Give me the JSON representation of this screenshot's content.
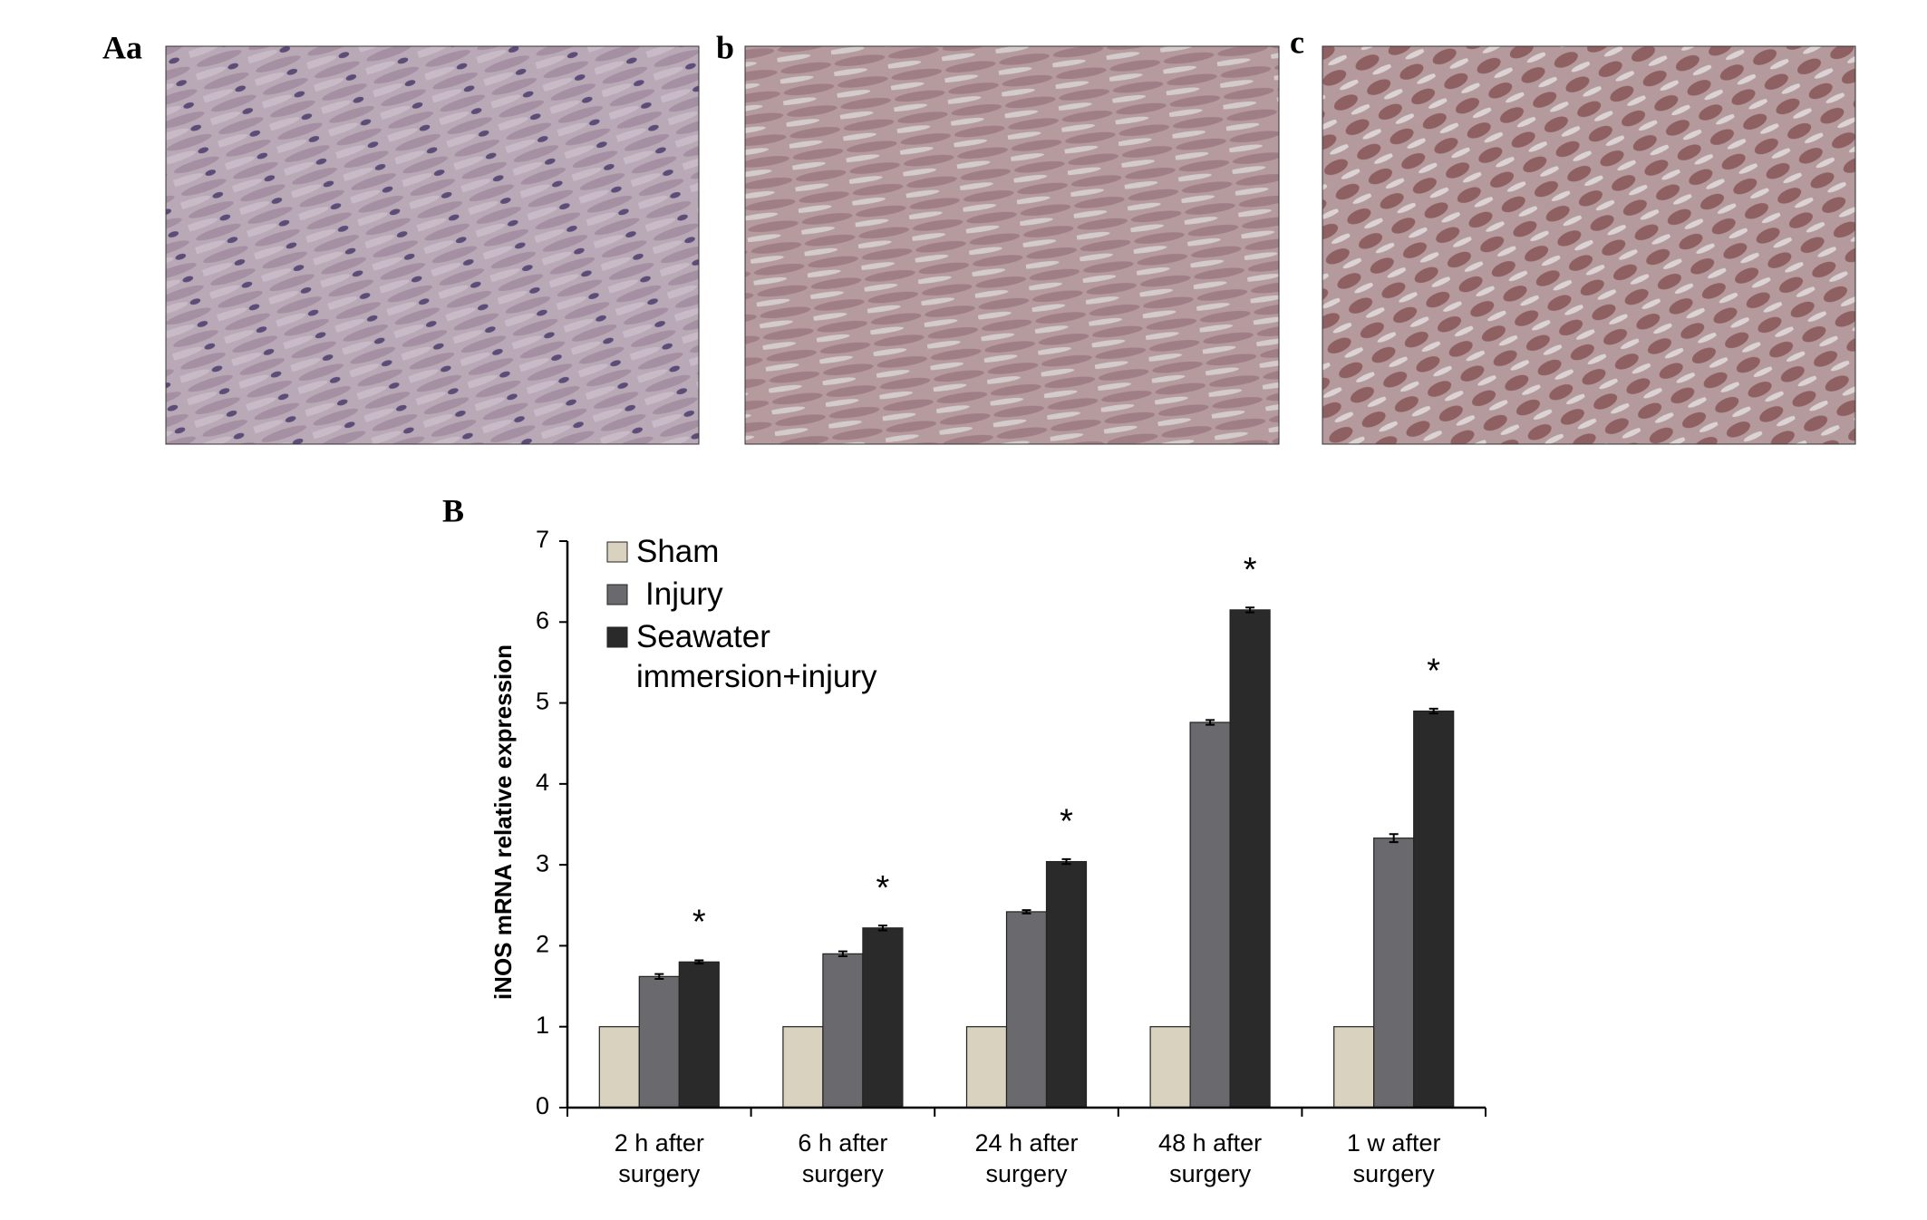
{
  "figure_labels": [
    "Aa",
    "b",
    "c",
    "B"
  ],
  "chart_data": {
    "type": "bar",
    "y_label": "iNOS mRNA relative expression",
    "categories": [
      "2 h after surgery",
      "6 h after surgery",
      "24 h after surgery",
      "48 h after surgery",
      "1 w after surgery"
    ],
    "series": [
      {
        "name": "Sham",
        "color": "#d8d2bf",
        "values": [
          1,
          1,
          1,
          1,
          1
        ]
      },
      {
        "name": "Injury",
        "color": "#6a6a6e",
        "values": [
          1.62,
          1.9,
          2.42,
          4.76,
          3.33
        ],
        "errors": [
          0.03,
          0.03,
          0.02,
          0.03,
          0.05
        ]
      },
      {
        "name": "Seawater immersion+injury",
        "color": "#2a2a2a",
        "values": [
          1.8,
          2.22,
          3.04,
          6.15,
          4.9
        ],
        "errors": [
          0.02,
          0.03,
          0.03,
          0.03,
          0.03
        ],
        "annotations": [
          "*",
          "*",
          "*",
          "*",
          "*"
        ]
      }
    ],
    "ylim": [
      0,
      7
    ],
    "yticks": [
      0,
      1,
      2,
      3,
      4,
      5,
      6,
      7
    ],
    "grid": false,
    "legend": "top-left"
  }
}
